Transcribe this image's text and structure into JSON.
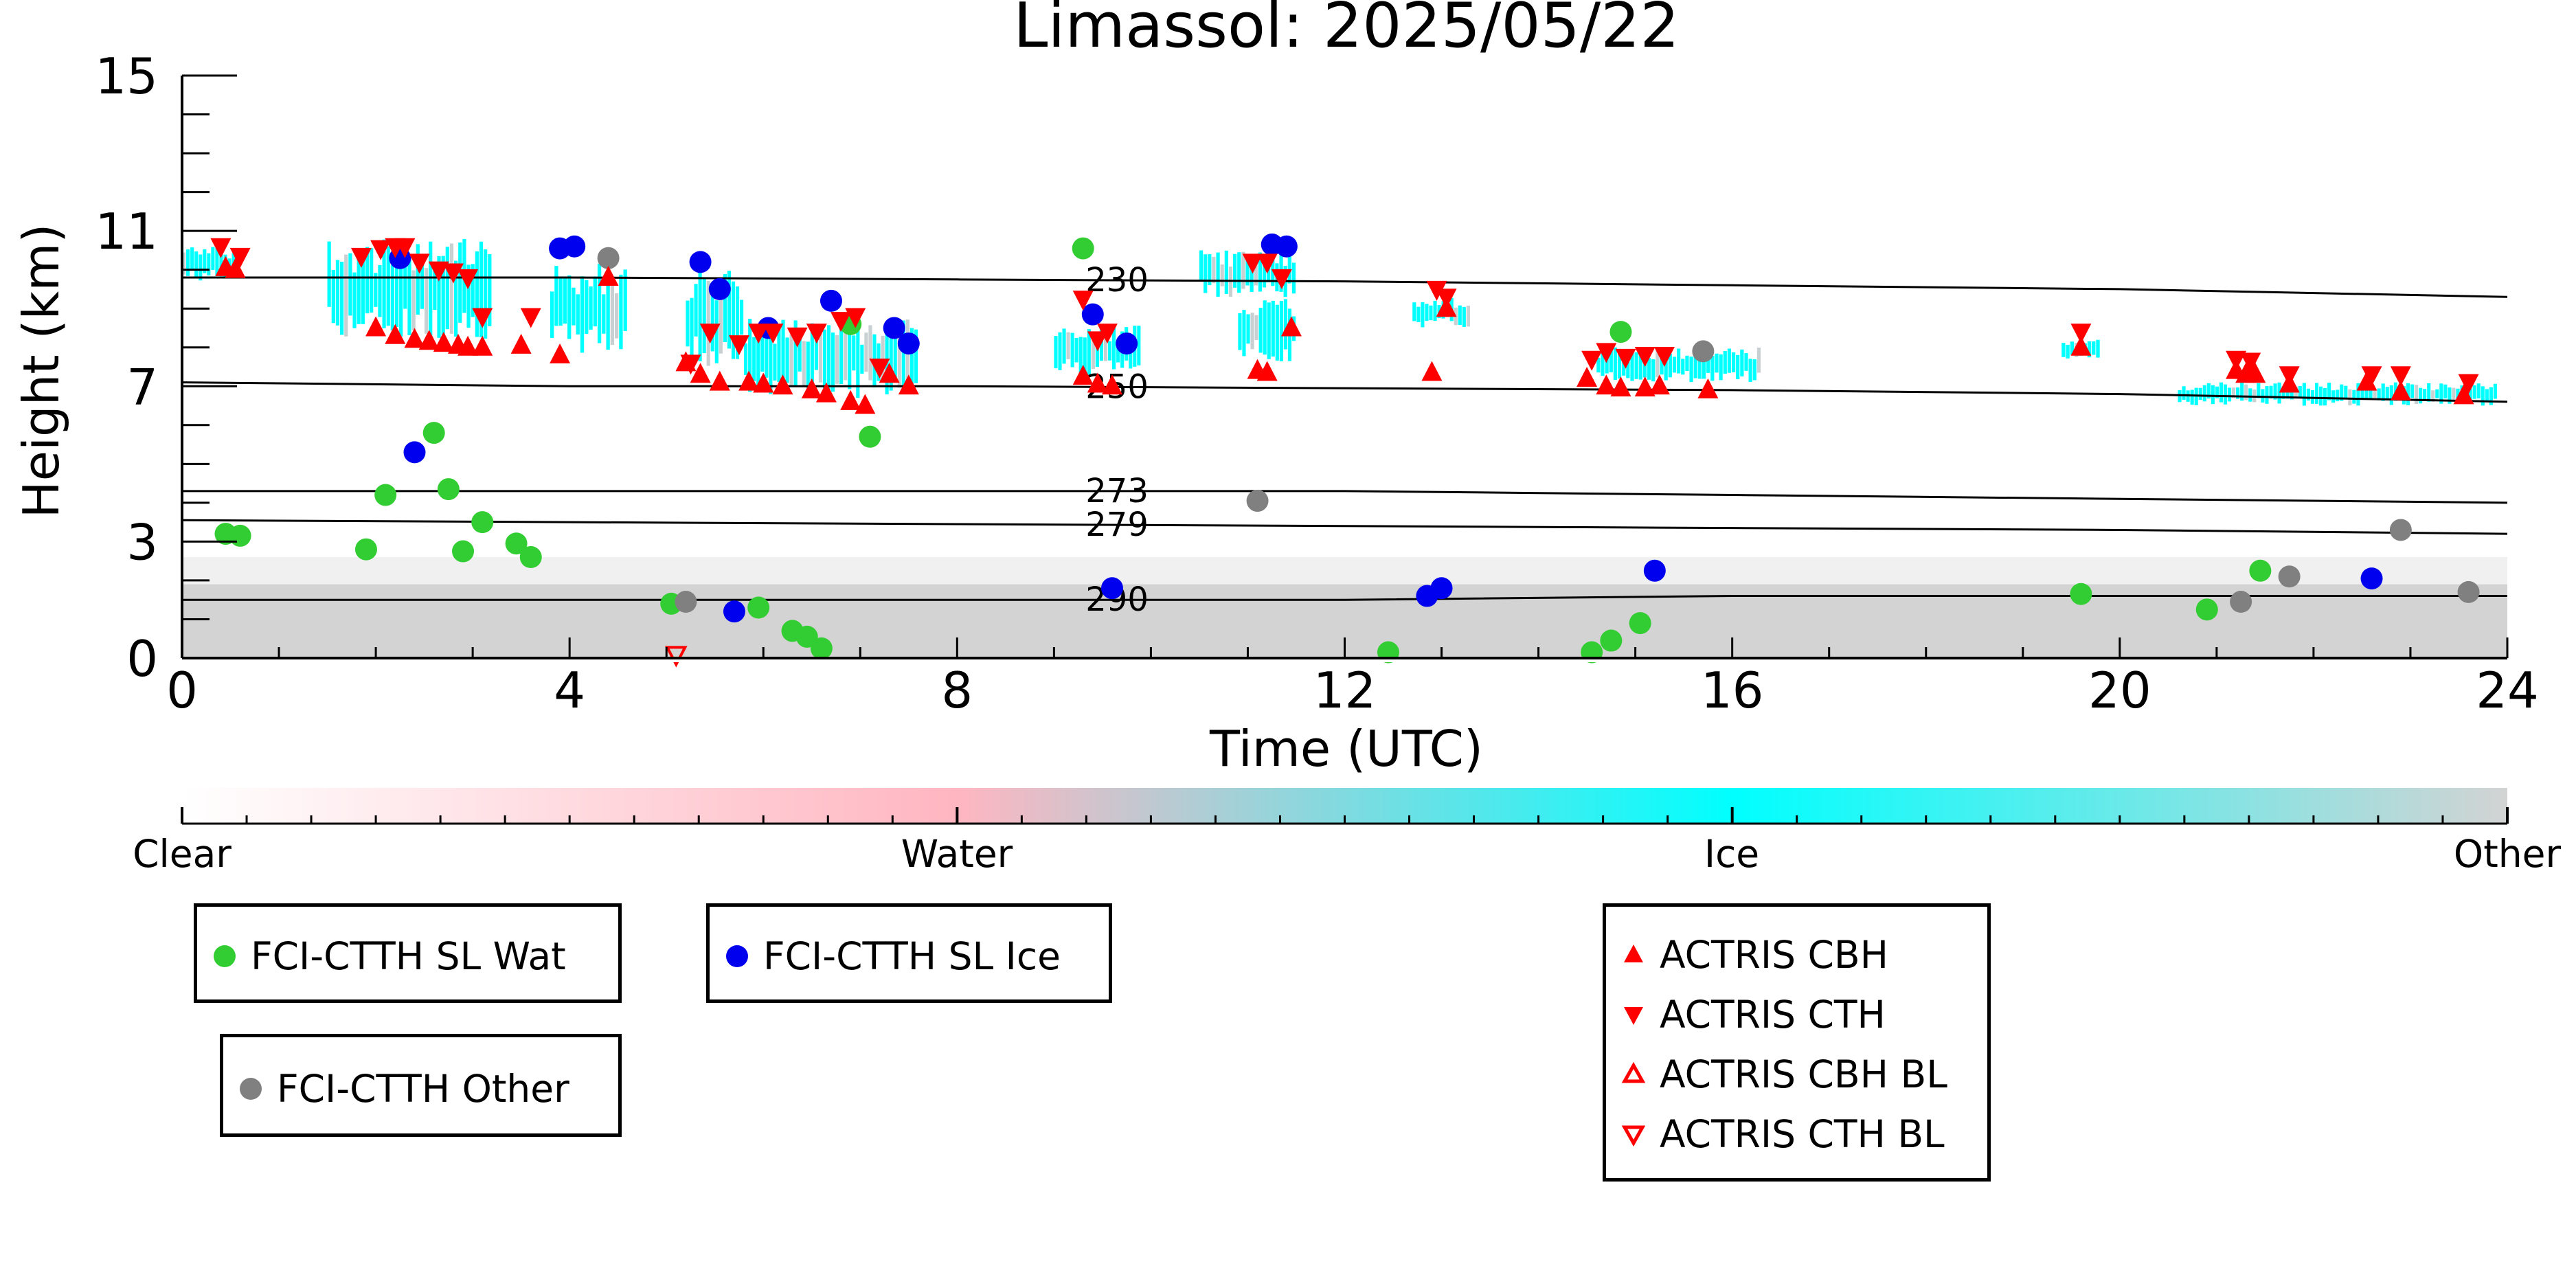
{
  "chart_data": {
    "type": "scatter",
    "title": "Limassol: 2025/05/22",
    "xlabel": "Time (UTC)",
    "ylabel": "Height (km)",
    "xlim": [
      0,
      24
    ],
    "ylim": [
      0,
      15
    ],
    "xticks": [
      0,
      4,
      8,
      12,
      16,
      20,
      24
    ],
    "yticks": [
      0,
      3,
      7,
      11,
      15
    ],
    "grid": false,
    "colors": {
      "water": "#ffb6c1",
      "ice": "#00ffff",
      "other": "#d3d3d3",
      "fci_wat": "#32cd32",
      "fci_ice": "#0000ee",
      "fci_other": "#808080",
      "actris": "#ff0000",
      "contour": "#000000"
    },
    "colorbar": {
      "labels": [
        "Clear",
        "Water",
        "Ice",
        "Other"
      ]
    },
    "isotherms": [
      {
        "label": "230",
        "x": [
          0,
          4,
          8,
          12,
          16,
          20,
          24
        ],
        "y": [
          9.8,
          9.8,
          9.75,
          9.7,
          9.6,
          9.5,
          9.3
        ]
      },
      {
        "label": "250",
        "x": [
          0,
          4,
          8,
          12,
          16,
          20,
          24
        ],
        "y": [
          7.1,
          7.0,
          7.0,
          6.95,
          6.9,
          6.8,
          6.6
        ]
      },
      {
        "label": "273",
        "x": [
          0,
          4,
          8,
          12,
          16,
          20,
          24
        ],
        "y": [
          4.3,
          4.3,
          4.3,
          4.3,
          4.2,
          4.1,
          4.0
        ]
      },
      {
        "label": "279",
        "x": [
          0,
          4,
          8,
          12,
          16,
          20,
          24
        ],
        "y": [
          3.55,
          3.5,
          3.45,
          3.4,
          3.35,
          3.3,
          3.2
        ]
      },
      {
        "label": "290",
        "x": [
          0,
          4,
          8,
          12,
          16,
          20,
          24
        ],
        "y": [
          1.5,
          1.5,
          1.5,
          1.5,
          1.6,
          1.6,
          1.6
        ]
      }
    ],
    "contour_label_x": 9.65,
    "cloud_regions": {
      "ice": [
        [
          0.0,
          0.6,
          9.7,
          10.6
        ],
        [
          1.5,
          3.2,
          8.2,
          10.8
        ],
        [
          3.8,
          4.6,
          7.8,
          10.2
        ],
        [
          5.2,
          5.8,
          7.5,
          10.0
        ],
        [
          5.8,
          7.6,
          6.7,
          8.8
        ],
        [
          9.0,
          9.9,
          7.3,
          8.6
        ],
        [
          10.5,
          11.5,
          9.3,
          10.5
        ],
        [
          10.9,
          11.5,
          7.6,
          9.3
        ],
        [
          12.7,
          13.3,
          8.5,
          9.3
        ],
        [
          14.6,
          16.3,
          7.1,
          8.0
        ],
        [
          19.4,
          19.8,
          7.7,
          8.2
        ],
        [
          20.6,
          23.9,
          6.5,
          7.1
        ]
      ],
      "other": [
        [
          0.0,
          24.0,
          0.0,
          1.9
        ],
        [
          0.0,
          24.0,
          1.9,
          2.6
        ]
      ]
    },
    "series": [
      {
        "name": "FCI-CTTH SL Wat",
        "marker": "circle",
        "x": [
          0.45,
          0.6,
          1.9,
          2.1,
          2.6,
          2.75,
          2.9,
          3.1,
          3.45,
          3.6,
          5.05,
          5.95,
          6.3,
          6.45,
          6.6,
          6.9,
          7.1,
          9.3,
          12.45,
          14.55,
          14.75,
          14.85,
          15.05,
          19.6,
          20.9,
          21.45
        ],
        "y": [
          3.2,
          3.15,
          2.8,
          4.2,
          5.8,
          4.35,
          2.75,
          3.5,
          2.95,
          2.6,
          1.4,
          1.3,
          0.7,
          0.55,
          0.25,
          8.6,
          5.7,
          10.55,
          0.15,
          0.15,
          0.45,
          8.4,
          0.9,
          1.65,
          1.25,
          2.25
        ]
      },
      {
        "name": "FCI-CTTH SL Ice",
        "marker": "circle",
        "x": [
          2.25,
          2.4,
          3.9,
          4.05,
          5.35,
          5.55,
          5.7,
          6.05,
          6.7,
          7.35,
          7.5,
          9.4,
          9.6,
          9.75,
          12.85,
          13.0,
          15.2,
          11.25,
          11.4,
          22.6
        ],
        "y": [
          10.3,
          5.3,
          10.55,
          10.6,
          10.2,
          9.5,
          1.2,
          8.5,
          9.2,
          8.5,
          8.1,
          8.85,
          1.8,
          8.1,
          1.6,
          1.8,
          2.25,
          10.65,
          10.6,
          2.05
        ]
      },
      {
        "name": "FCI-CTTH Other",
        "marker": "circle",
        "x": [
          4.4,
          5.2,
          11.1,
          15.7,
          21.25,
          21.75,
          22.9,
          23.6
        ],
        "y": [
          10.3,
          1.45,
          4.05,
          7.9,
          1.45,
          2.1,
          3.3,
          1.7
        ]
      },
      {
        "name": "ACTRIS CBH",
        "marker": "triangle-up",
        "x": [
          0.45,
          0.55,
          2.0,
          2.2,
          2.4,
          2.55,
          2.7,
          2.85,
          2.95,
          3.1,
          3.5,
          3.9,
          4.4,
          5.2,
          5.35,
          5.55,
          5.85,
          6.0,
          6.2,
          6.5,
          6.65,
          6.9,
          7.05,
          7.3,
          7.5,
          9.3,
          9.45,
          9.6,
          11.1,
          11.2,
          11.45,
          12.9,
          13.05,
          14.5,
          14.7,
          14.85,
          15.1,
          15.25,
          15.75,
          19.6,
          21.2,
          21.3,
          21.4,
          21.75,
          22.55,
          22.9,
          23.55
        ],
        "y": [
          10.05,
          10.0,
          8.5,
          8.3,
          8.2,
          8.15,
          8.1,
          8.05,
          8.0,
          8.0,
          8.05,
          7.8,
          9.8,
          7.6,
          7.3,
          7.1,
          7.1,
          7.05,
          7.0,
          6.9,
          6.8,
          6.6,
          6.5,
          7.3,
          7.0,
          7.25,
          7.05,
          7.0,
          7.4,
          7.35,
          8.5,
          7.35,
          9.0,
          7.2,
          7.0,
          6.95,
          6.95,
          7.0,
          6.9,
          8.0,
          7.4,
          7.3,
          7.3,
          7.05,
          7.1,
          6.85,
          6.75
        ]
      },
      {
        "name": "ACTRIS CTH",
        "marker": "triangle-down",
        "x": [
          0.4,
          0.6,
          1.85,
          2.05,
          2.2,
          2.3,
          2.45,
          2.65,
          2.8,
          2.95,
          3.1,
          3.6,
          5.25,
          5.45,
          5.75,
          5.95,
          6.1,
          6.35,
          6.55,
          6.8,
          6.95,
          7.2,
          9.3,
          9.45,
          9.55,
          11.05,
          11.2,
          11.35,
          12.95,
          13.05,
          14.55,
          14.7,
          14.9,
          15.1,
          15.3,
          19.6,
          21.2,
          21.35,
          21.75,
          22.6,
          22.9,
          23.6
        ],
        "y": [
          10.6,
          10.35,
          10.35,
          10.55,
          10.6,
          10.6,
          10.2,
          10.0,
          9.95,
          9.8,
          8.8,
          8.8,
          7.6,
          8.4,
          8.1,
          8.4,
          8.4,
          8.3,
          8.4,
          8.7,
          8.8,
          7.5,
          9.25,
          8.2,
          8.4,
          10.2,
          10.2,
          9.8,
          9.5,
          9.3,
          7.7,
          7.9,
          7.75,
          7.8,
          7.8,
          8.4,
          7.7,
          7.65,
          7.3,
          7.3,
          7.3,
          7.1
        ]
      },
      {
        "name": "ACTRIS CBH BL",
        "marker": "triangle-up-open",
        "x": [],
        "y": []
      },
      {
        "name": "ACTRIS CTH BL",
        "marker": "triangle-down-open",
        "x": [
          5.1
        ],
        "y": [
          0.1
        ]
      }
    ]
  },
  "legend": {
    "wat": "FCI-CTTH SL Wat",
    "ice": "FCI-CTTH SL Ice",
    "other": "FCI-CTTH Other",
    "cbh": "ACTRIS CBH",
    "cth": "ACTRIS CTH",
    "cbh_bl": "ACTRIS CBH BL",
    "cth_bl": "ACTRIS CTH BL"
  }
}
